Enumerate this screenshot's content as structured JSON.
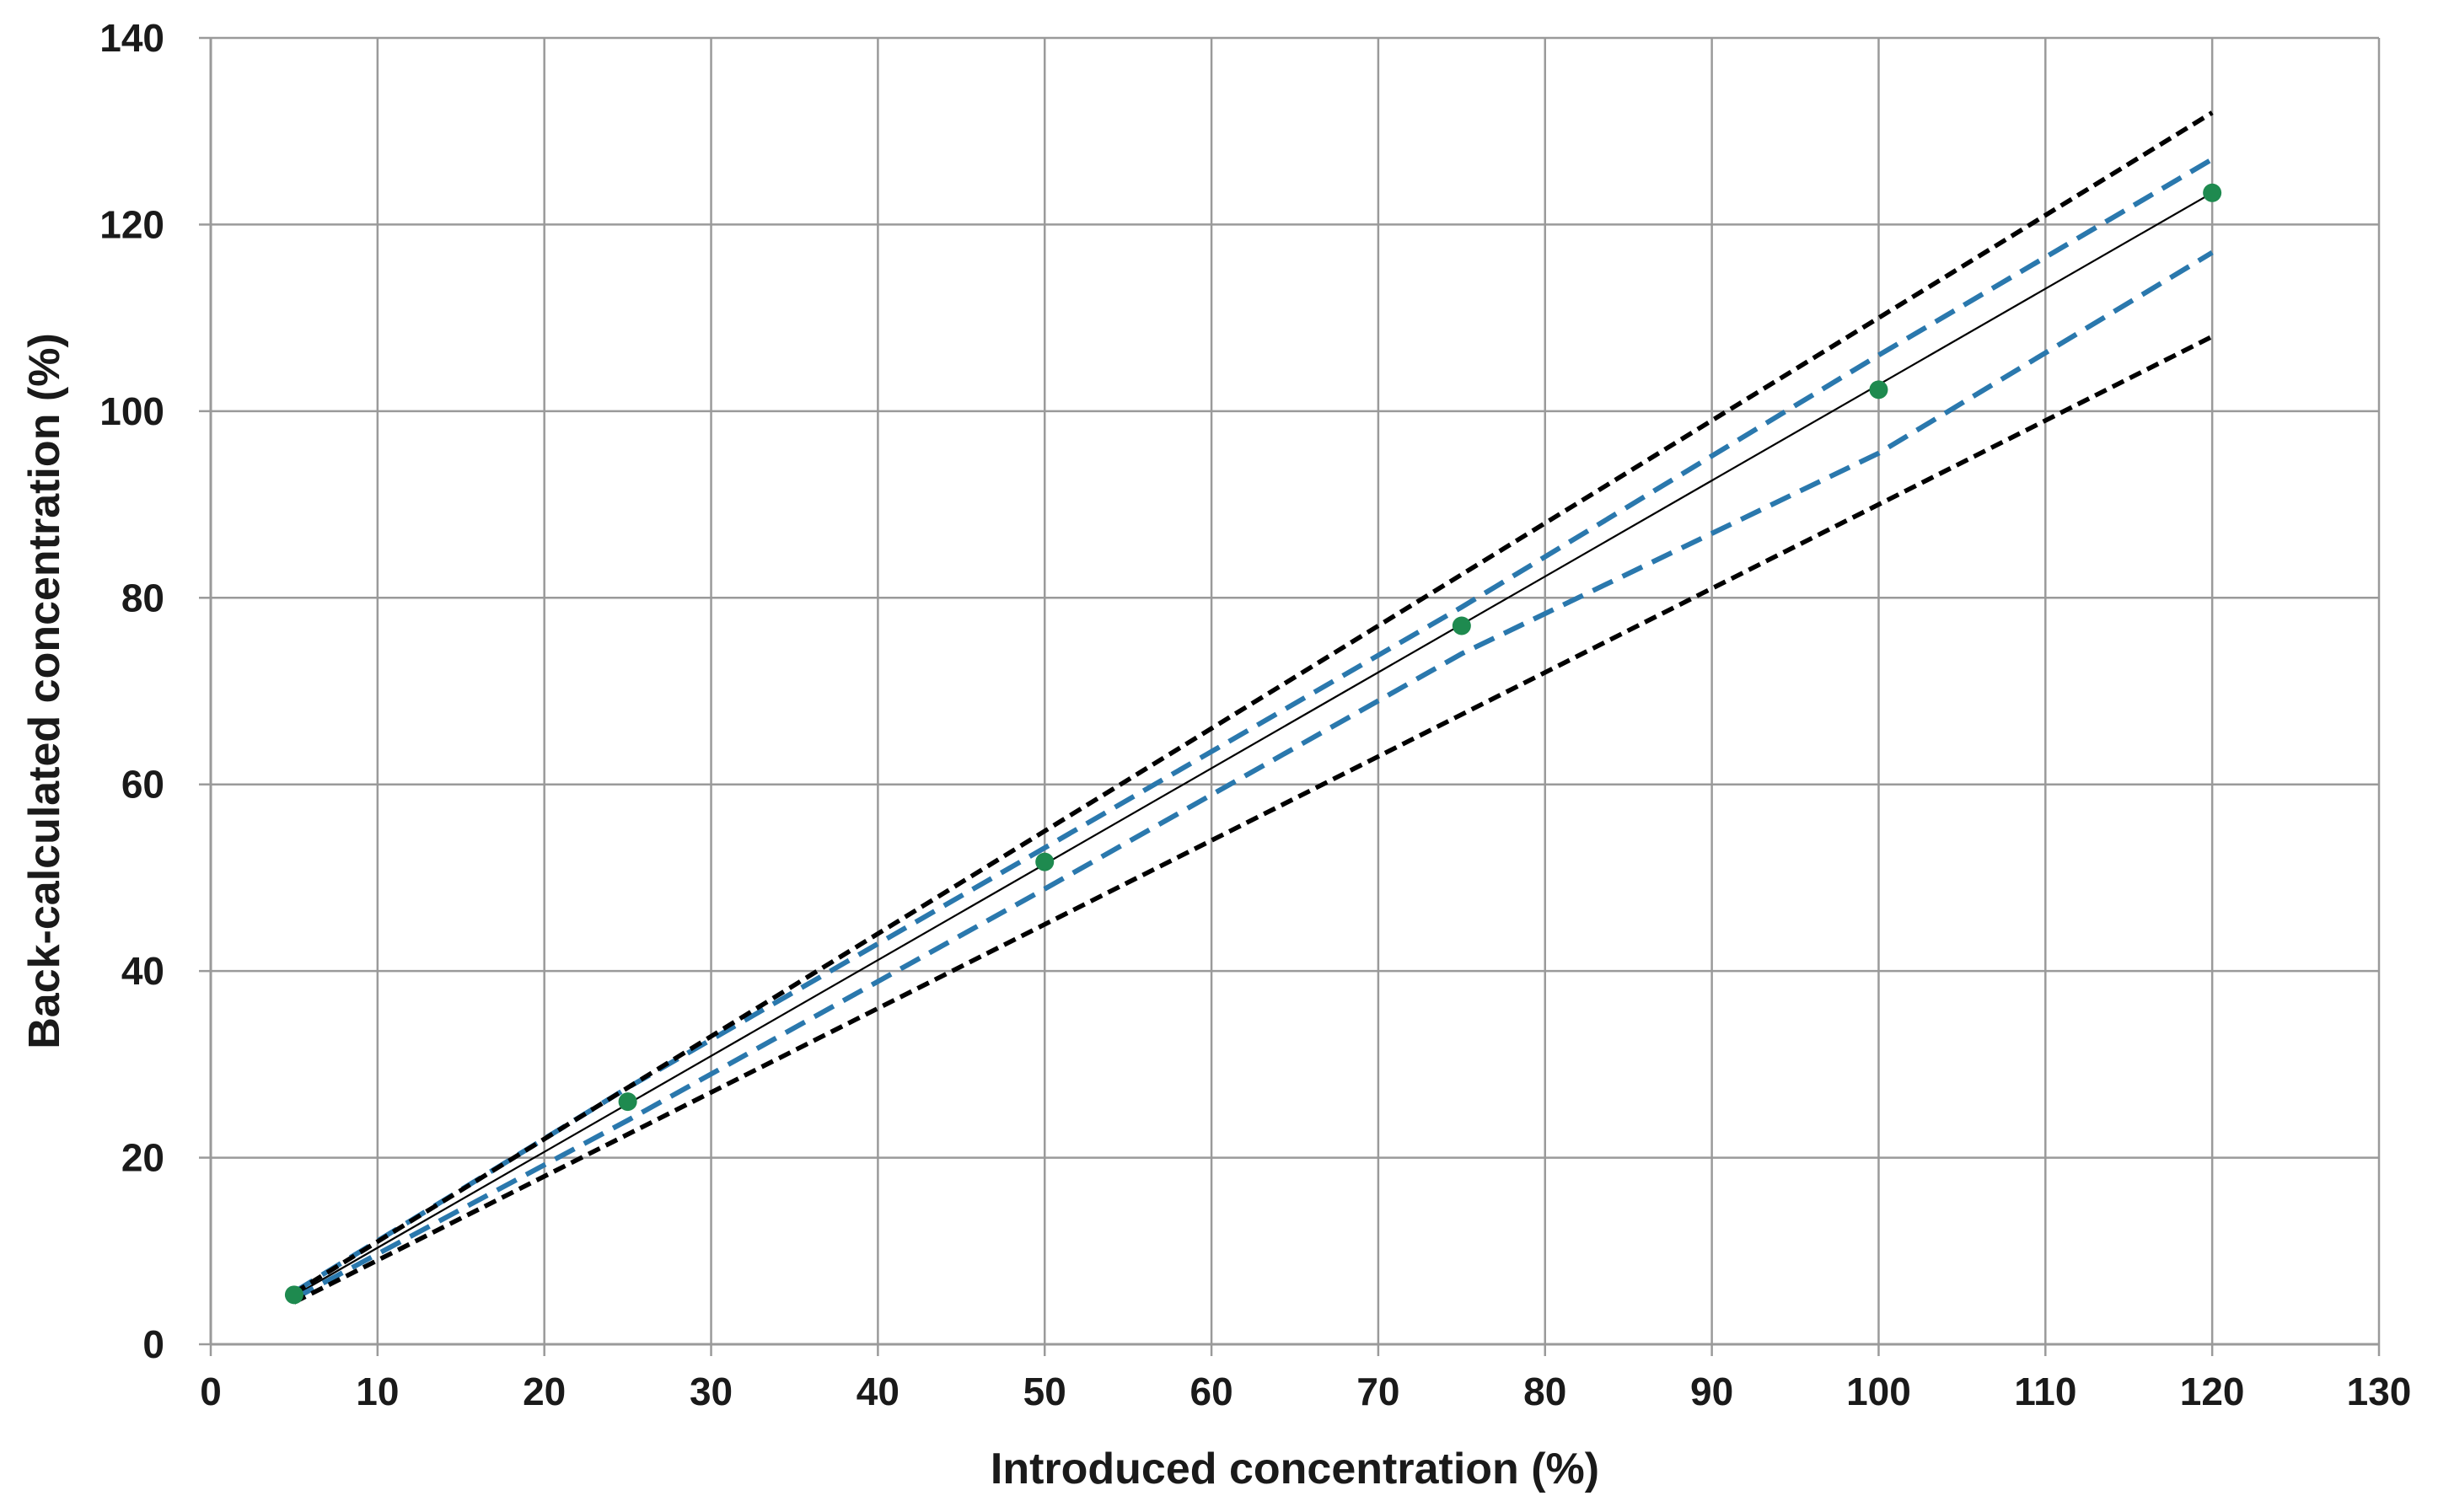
{
  "chart_data": {
    "type": "line",
    "title": "",
    "xlabel": "Introduced concentration (%)",
    "ylabel": "Back-calculated concentration (%)",
    "xlim": [
      0,
      130
    ],
    "ylim": [
      0,
      140
    ],
    "x_ticks": [
      0,
      10,
      20,
      30,
      40,
      50,
      60,
      70,
      80,
      90,
      100,
      110,
      120,
      130
    ],
    "y_ticks": [
      0,
      20,
      40,
      60,
      80,
      100,
      120,
      140
    ],
    "grid": true,
    "legend": "none",
    "colors": {
      "measured": "#1e8a4f",
      "fit_line": "#000000",
      "inner_interval": "#2a78ad",
      "outer_limit": "#000000",
      "grid": "#9a9a9a"
    },
    "series": [
      {
        "style": "markers",
        "x": [
          5,
          25,
          50,
          75,
          100,
          120
        ],
        "y": [
          5.3,
          26,
          51.7,
          77,
          102.3,
          123.4
        ]
      },
      {
        "style": "solid-thin",
        "x": [
          5,
          120
        ],
        "y": [
          5.2,
          123.4
        ]
      },
      {
        "style": "dashed-blue",
        "x": [
          5,
          25,
          50,
          75,
          100,
          120
        ],
        "y": [
          5.6,
          27.5,
          53.2,
          79,
          106,
          127
        ]
      },
      {
        "style": "dashed-blue",
        "x": [
          5,
          25,
          50,
          75,
          100,
          120
        ],
        "y": [
          4.9,
          24,
          48.8,
          74,
          95.5,
          117
        ]
      },
      {
        "style": "dashed-black",
        "x": [
          5,
          120
        ],
        "y": [
          5.5,
          132
        ]
      },
      {
        "style": "dashed-black",
        "x": [
          5,
          120
        ],
        "y": [
          4.5,
          108
        ]
      }
    ]
  }
}
